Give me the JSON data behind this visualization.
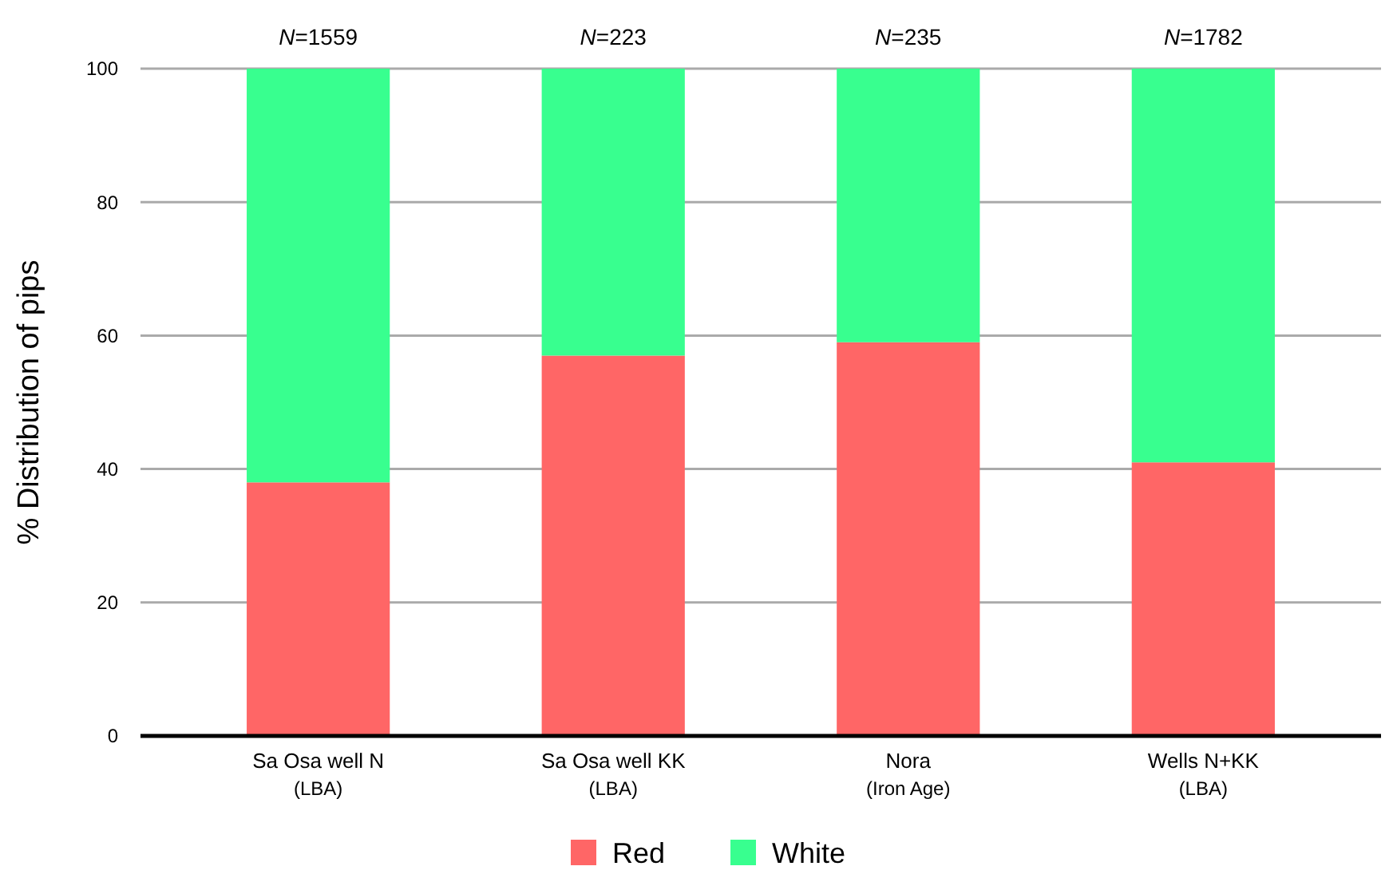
{
  "chart_data": {
    "type": "bar",
    "stacked": true,
    "ylabel": "% Distribution of pips",
    "categories": [
      "Sa Osa well N\n(LBA)",
      "Sa Osa well KK\n(LBA)",
      "Nora\n(Iron Age)",
      "Wells N+KK\n(LBA)"
    ],
    "series": [
      {
        "name": "Red",
        "color": "#ff6666",
        "values": [
          38,
          57,
          59,
          41
        ]
      },
      {
        "name": "White",
        "color": "#38ff8f",
        "values": [
          62,
          43,
          41,
          59
        ]
      }
    ],
    "ylim": [
      0,
      100
    ],
    "yticks": [
      0,
      20,
      40,
      60,
      80,
      100
    ],
    "grid": "y",
    "legend": "bottom",
    "annotations": [
      {
        "text": "N=1559",
        "x": "Sa Osa well N\n(LBA)",
        "y": 100
      },
      {
        "text": "N=223",
        "x": "Sa Osa well KK\n(LBA)",
        "y": 100
      },
      {
        "text": "N=235",
        "x": "Nora\n(Iron Age)",
        "y": 100
      },
      {
        "text": "N=1782",
        "x": "Wells N+KK\n(LBA)",
        "y": 100
      }
    ]
  }
}
